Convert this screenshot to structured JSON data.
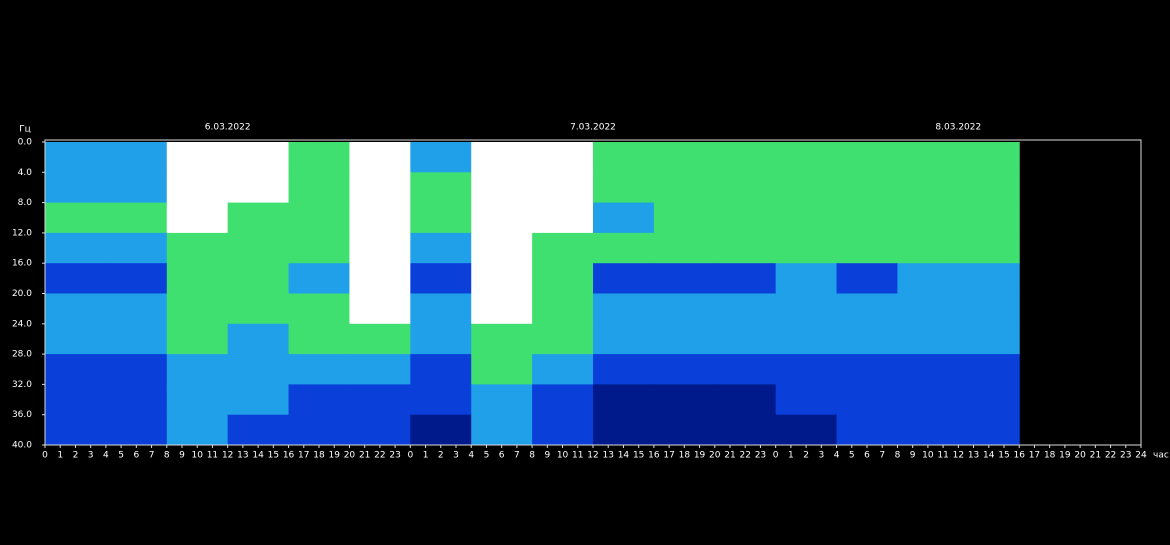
{
  "chart_data": {
    "type": "heatmap",
    "y_label": "Гц",
    "x_label": "час",
    "days": [
      "6.03.2022",
      "7.03.2022",
      "8.03.2022"
    ],
    "xlim": [
      0,
      72
    ],
    "xticks": [
      0,
      1,
      2,
      3,
      4,
      5,
      6,
      7,
      8,
      9,
      10,
      11,
      12,
      13,
      14,
      15,
      16,
      17,
      18,
      19,
      20,
      21,
      22,
      23,
      {
        "value": 24,
        "label": "0"
      },
      {
        "value": 25,
        "label": "1"
      },
      {
        "value": 26,
        "label": "2"
      },
      {
        "value": 27,
        "label": "3"
      },
      {
        "value": 28,
        "label": "4"
      },
      {
        "value": 29,
        "label": "5"
      },
      {
        "value": 30,
        "label": "6"
      },
      {
        "value": 31,
        "label": "7"
      },
      {
        "value": 32,
        "label": "8"
      },
      {
        "value": 33,
        "label": "9"
      },
      {
        "value": 34,
        "label": "10"
      },
      {
        "value": 35,
        "label": "11"
      },
      {
        "value": 36,
        "label": "12"
      },
      {
        "value": 37,
        "label": "13"
      },
      {
        "value": 38,
        "label": "14"
      },
      {
        "value": 39,
        "label": "15"
      },
      {
        "value": 40,
        "label": "16"
      },
      {
        "value": 41,
        "label": "17"
      },
      {
        "value": 42,
        "label": "18"
      },
      {
        "value": 43,
        "label": "19"
      },
      {
        "value": 44,
        "label": "20"
      },
      {
        "value": 45,
        "label": "21"
      },
      {
        "value": 46,
        "label": "22"
      },
      {
        "value": 47,
        "label": "23"
      },
      {
        "value": 48,
        "label": "0"
      },
      {
        "value": 49,
        "label": "1"
      },
      {
        "value": 50,
        "label": "2"
      },
      {
        "value": 51,
        "label": "3"
      },
      {
        "value": 52,
        "label": "4"
      },
      {
        "value": 53,
        "label": "5"
      },
      {
        "value": 54,
        "label": "6"
      },
      {
        "value": 55,
        "label": "7"
      },
      {
        "value": 56,
        "label": "8"
      },
      {
        "value": 57,
        "label": "9"
      },
      {
        "value": 58,
        "label": "10"
      },
      {
        "value": 59,
        "label": "11"
      },
      {
        "value": 60,
        "label": "12"
      },
      {
        "value": 61,
        "label": "13"
      },
      {
        "value": 62,
        "label": "14"
      },
      {
        "value": 63,
        "label": "15"
      },
      {
        "value": 64,
        "label": "16"
      },
      {
        "value": 65,
        "label": "17"
      },
      {
        "value": 66,
        "label": "18"
      },
      {
        "value": 67,
        "label": "19"
      },
      {
        "value": 68,
        "label": "20"
      },
      {
        "value": 69,
        "label": "21"
      },
      {
        "value": 70,
        "label": "22"
      },
      {
        "value": 71,
        "label": "23"
      },
      {
        "value": 72,
        "label": "24"
      }
    ],
    "ylim": [
      0,
      40
    ],
    "yticks": [
      {
        "value": 0,
        "label": "0.0"
      },
      {
        "value": 4,
        "label": "4.0"
      },
      {
        "value": 8,
        "label": "8.0"
      },
      {
        "value": 12,
        "label": "12.0"
      },
      {
        "value": 16,
        "label": "16.0"
      },
      {
        "value": 20,
        "label": "20.0"
      },
      {
        "value": 24,
        "label": "24.0"
      },
      {
        "value": 28,
        "label": "28.0"
      },
      {
        "value": 32,
        "label": "32.0"
      },
      {
        "value": 36,
        "label": "36.0"
      },
      {
        "value": 40,
        "label": "40.0"
      }
    ],
    "time_bins": [
      0,
      4,
      8,
      12,
      16,
      20,
      24,
      28,
      32,
      36,
      40,
      44,
      48,
      52,
      56,
      60,
      64
    ],
    "freq_bins": [
      0,
      4,
      8,
      12,
      16,
      20,
      24,
      28,
      32,
      36,
      40
    ],
    "colors": [
      "#001a8c",
      "#0a3fd9",
      "#20a0e8",
      "#40e070",
      "#ffffff"
    ],
    "intensity": [
      [
        2,
        2,
        4,
        4,
        3,
        4,
        2,
        4,
        4,
        3,
        3,
        3,
        3,
        3,
        3,
        3
      ],
      [
        2,
        2,
        4,
        4,
        3,
        4,
        3,
        4,
        4,
        3,
        3,
        3,
        3,
        3,
        3,
        3
      ],
      [
        3,
        3,
        4,
        3,
        3,
        4,
        3,
        4,
        4,
        2,
        3,
        3,
        3,
        3,
        3,
        3
      ],
      [
        2,
        2,
        3,
        3,
        3,
        4,
        2,
        4,
        3,
        3,
        3,
        3,
        3,
        3,
        3,
        3
      ],
      [
        1,
        1,
        3,
        3,
        2,
        4,
        1,
        4,
        3,
        1,
        1,
        1,
        2,
        1,
        2,
        2
      ],
      [
        2,
        2,
        3,
        3,
        3,
        4,
        2,
        4,
        3,
        2,
        2,
        2,
        2,
        2,
        2,
        2
      ],
      [
        2,
        2,
        3,
        2,
        3,
        3,
        2,
        3,
        3,
        2,
        2,
        2,
        2,
        2,
        2,
        2
      ],
      [
        1,
        1,
        2,
        2,
        2,
        2,
        1,
        3,
        2,
        1,
        1,
        1,
        1,
        1,
        1,
        1
      ],
      [
        1,
        1,
        2,
        2,
        1,
        1,
        1,
        2,
        1,
        0,
        0,
        0,
        1,
        1,
        1,
        1
      ],
      [
        1,
        1,
        2,
        1,
        1,
        1,
        0,
        2,
        1,
        0,
        0,
        0,
        0,
        1,
        1,
        1
      ]
    ]
  }
}
